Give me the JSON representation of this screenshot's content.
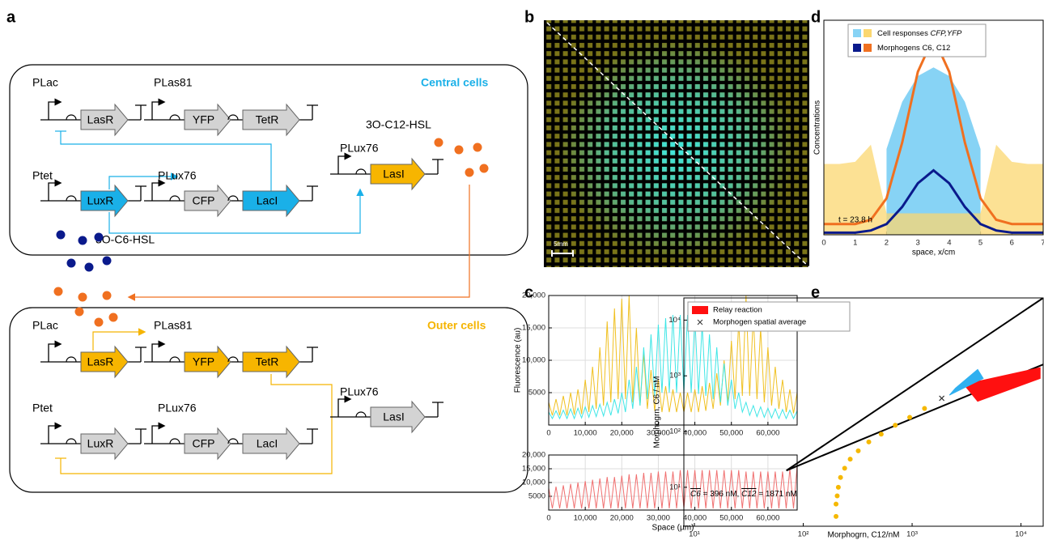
{
  "panel_labels": [
    "a",
    "b",
    "c",
    "d",
    "e"
  ],
  "diagram": {
    "central": {
      "title": "Central cells",
      "promoters": [
        "PLac",
        "PLas81",
        "Ptet",
        "PLux76",
        "PLux76"
      ],
      "genes": [
        "LasR",
        "YFP",
        "TetR",
        "LuxR",
        "CFP",
        "LacI",
        "LasI"
      ]
    },
    "outer": {
      "title": "Outer cells",
      "promoters": [
        "PLac",
        "PLas81",
        "Ptet",
        "PLux76",
        "PLux76"
      ],
      "genes": [
        "LasR",
        "YFP",
        "TetR",
        "LuxR",
        "CFP",
        "LacI",
        "LasI"
      ]
    },
    "molecules": [
      "3O-C12-HSL",
      "3O-C6-HSL"
    ]
  },
  "image_b": {
    "scale_bar": "5mm"
  },
  "chart_data": [
    {
      "type": "line",
      "ylabel": "Fluorescence (au)",
      "grid": true,
      "x": [
        0,
        1000,
        2000,
        3000,
        4000,
        5000,
        6000,
        7000,
        8000,
        9000,
        10000,
        11000,
        12000,
        13000,
        14000,
        15000,
        16000,
        17000,
        18000,
        19000,
        20000,
        21000,
        22000,
        23000,
        24000,
        25000,
        26000,
        27000,
        28000,
        29000,
        30000,
        31000,
        32000,
        33000,
        34000,
        35000,
        36000,
        37000,
        38000,
        39000,
        40000,
        41000,
        42000,
        43000,
        44000,
        45000,
        46000,
        47000,
        48000,
        49000,
        50000,
        51000,
        52000,
        53000,
        54000,
        55000,
        56000,
        57000,
        58000,
        59000,
        60000,
        61000,
        62000,
        63000,
        64000,
        65000,
        66000,
        67000,
        68000
      ],
      "series": [
        {
          "color": "#f0c020",
          "values": [
            3500,
            1500,
            4000,
            1500,
            4500,
            1500,
            5000,
            1600,
            5500,
            1700,
            7000,
            2000,
            9000,
            2500,
            12000,
            3000,
            16000,
            3500,
            18000,
            4000,
            19500,
            4000,
            20000,
            3500,
            15000,
            3000,
            11000,
            2500,
            8500,
            2200,
            7000,
            2000,
            6000,
            2000,
            5500,
            2000,
            5000,
            2000,
            5000,
            2000,
            5500,
            2000,
            6000,
            2200,
            6500,
            2500,
            8000,
            3000,
            10000,
            3500,
            13000,
            4000,
            16000,
            4500,
            20000,
            4500,
            17000,
            4000,
            15000,
            3500,
            12000,
            3000,
            9000,
            2500,
            7000,
            2000,
            5500,
            1800,
            5000
          ]
        },
        {
          "color": "#3ee6e6",
          "values": [
            2000,
            1000,
            2200,
            1000,
            2300,
            1000,
            2500,
            1000,
            2600,
            1100,
            2800,
            1200,
            3000,
            1300,
            3200,
            1400,
            3500,
            1500,
            4000,
            1800,
            5000,
            2000,
            7000,
            2500,
            9000,
            3000,
            12000,
            4000,
            14000,
            4500,
            15500,
            5000,
            16500,
            5000,
            17000,
            5000,
            17000,
            5000,
            17000,
            5000,
            16500,
            4800,
            15500,
            4500,
            14000,
            4000,
            12000,
            3500,
            9500,
            3000,
            7000,
            2500,
            5000,
            2000,
            3500,
            1500,
            3000,
            1300,
            2800,
            1200,
            2600,
            1100,
            2500,
            1000,
            2400,
            1000,
            2300,
            1000,
            2200
          ]
        }
      ],
      "xlim": [
        0,
        68000
      ],
      "ylim": [
        0,
        20000
      ],
      "xticks": [
        0,
        {
          "value": 10000,
          "label": "10,000"
        },
        {
          "value": 20000,
          "label": "20,000"
        },
        {
          "value": 30000,
          "label": "30,000"
        },
        {
          "value": 40000,
          "label": "40,000"
        },
        {
          "value": 50000,
          "label": "50,000"
        },
        {
          "value": 60000,
          "label": "60,000"
        }
      ],
      "yticks": [
        5000,
        {
          "value": 10000,
          "label": "10,000"
        },
        {
          "value": 15000,
          "label": "15,000"
        },
        {
          "value": 20000,
          "label": "20,000"
        }
      ]
    },
    {
      "type": "line",
      "xlabel": "Space (µm)",
      "grid": true,
      "x": [
        0,
        1000,
        2000,
        3000,
        4000,
        5000,
        6000,
        7000,
        8000,
        9000,
        10000,
        11000,
        12000,
        13000,
        14000,
        15000,
        16000,
        17000,
        18000,
        19000,
        20000,
        21000,
        22000,
        23000,
        24000,
        25000,
        26000,
        27000,
        28000,
        29000,
        30000,
        31000,
        32000,
        33000,
        34000,
        35000,
        36000,
        37000,
        38000,
        39000,
        40000,
        41000,
        42000,
        43000,
        44000,
        45000,
        46000,
        47000,
        48000,
        49000,
        50000,
        51000,
        52000,
        53000,
        54000,
        55000,
        56000,
        57000,
        58000,
        59000,
        60000,
        61000,
        62000,
        63000,
        64000,
        65000,
        66000,
        67000,
        68000
      ],
      "series": [
        {
          "color": "#f07070",
          "values": [
            8000,
            600,
            8500,
            600,
            9000,
            600,
            9500,
            600,
            10000,
            600,
            10500,
            600,
            11000,
            600,
            11500,
            600,
            12000,
            600,
            12000,
            600,
            12500,
            600,
            13000,
            600,
            13000,
            600,
            13500,
            600,
            13500,
            600,
            14000,
            600,
            14000,
            600,
            14000,
            600,
            14500,
            600,
            14500,
            600,
            14500,
            600,
            14500,
            600,
            14500,
            600,
            14500,
            600,
            14500,
            600,
            14500,
            600,
            14500,
            600,
            14000,
            600,
            14000,
            600,
            14000,
            600,
            14000,
            600,
            14000,
            600,
            14000,
            600,
            15000,
            600,
            16000
          ]
        }
      ],
      "xlim": [
        0,
        68000
      ],
      "ylim": [
        0,
        20000
      ],
      "xticks": [
        0,
        {
          "value": 10000,
          "label": "10,000"
        },
        {
          "value": 20000,
          "label": "20,000"
        },
        {
          "value": 30000,
          "label": "30,000"
        },
        {
          "value": 40000,
          "label": "40,000"
        },
        {
          "value": 50000,
          "label": "50,000"
        },
        {
          "value": 60000,
          "label": "60,000"
        }
      ],
      "yticks": [
        5000,
        {
          "value": 10000,
          "label": "10,000"
        },
        {
          "value": 15000,
          "label": "15,000"
        },
        {
          "value": 20000,
          "label": "20,000"
        }
      ]
    },
    {
      "type": "line",
      "xlabel": "space, x/cm",
      "ylabel": "Concentrations",
      "annotation": "t = 23.8 h",
      "legend": [
        {
          "label": [
            "Cell responses ",
            "CFP,YFP"
          ],
          "colors": [
            "#87d3f5",
            "#fbd770"
          ]
        },
        {
          "label": [
            "Morphogens C6, C12"
          ],
          "colors": [
            "#0a1a8c",
            "#f07020"
          ]
        }
      ],
      "x": [
        0,
        0.5,
        1,
        1.5,
        2,
        2.5,
        3,
        3.5,
        4,
        4.5,
        5,
        5.5,
        6,
        6.5,
        7
      ],
      "series": [
        {
          "kind": "area",
          "color": "#87d3f5",
          "values": [
            null,
            null,
            null,
            null,
            0.4,
            0.62,
            0.74,
            0.78,
            0.74,
            0.62,
            0.4,
            null,
            null,
            null,
            null
          ]
        },
        {
          "kind": "area",
          "color": "#fbd770",
          "values": [
            0.33,
            0.33,
            0.34,
            0.42,
            0.1,
            0.1,
            0.1,
            0.1,
            0.1,
            0.1,
            0.1,
            0.42,
            0.34,
            0.33,
            0.33
          ]
        },
        {
          "kind": "line",
          "color": "#f07020",
          "values": [
            0.05,
            0.05,
            0.05,
            0.07,
            0.17,
            0.43,
            0.76,
            0.92,
            0.76,
            0.43,
            0.17,
            0.07,
            0.05,
            0.05,
            0.05
          ]
        },
        {
          "kind": "line",
          "color": "#0a1a8c",
          "values": [
            0.01,
            0.01,
            0.01,
            0.02,
            0.05,
            0.13,
            0.24,
            0.3,
            0.24,
            0.13,
            0.05,
            0.02,
            0.01,
            0.01,
            0.01
          ]
        }
      ],
      "xlim": [
        0,
        7
      ],
      "ylim": [
        0,
        1
      ],
      "xticks": [
        0,
        1,
        2,
        3,
        4,
        5,
        6,
        7
      ]
    },
    {
      "type": "scatter",
      "xlog": true,
      "ylog": true,
      "xlabel": "Morphogrn, C12/nM",
      "ylabel": "Morphogrn, C6 / nM",
      "annotation": [
        "C6",
        " = 396 nM, ",
        "C12",
        " = 1871 nM"
      ],
      "series": [
        {
          "kind": "line",
          "color": "#000000",
          "x": [
            70,
            16000
          ],
          "y": [
            20,
            25000
          ]
        },
        {
          "kind": "line",
          "color": "#000000",
          "x": [
            70,
            16000
          ],
          "y": [
            20,
            1600
          ]
        },
        {
          "kind": "polygon",
          "name": "Relay reaction",
          "color": "#ff1010",
          "x": [
            3000,
            15000,
            15000,
            4000
          ],
          "y": [
            700,
            1400,
            900,
            350
          ]
        },
        {
          "kind": "polygon",
          "color": "#30b0f0",
          "x": [
            2500,
            4000,
            4500,
            2200
          ],
          "y": [
            600,
            1300,
            900,
            450
          ]
        },
        {
          "kind": "dots",
          "color": "#f5b800",
          "x": [
            200,
            200,
            205,
            210,
            220,
            240,
            270,
            320,
            400,
            520,
            700,
            950,
            1300
          ],
          "y": [
            3,
            5,
            7,
            10,
            15,
            22,
            32,
            45,
            65,
            90,
            130,
            180,
            260
          ]
        },
        {
          "kind": "cross",
          "name": "Morphogen spatial average",
          "color": "#333333",
          "x": [
            1871
          ],
          "y": [
            396
          ]
        }
      ],
      "xlim": [
        8,
        16000
      ],
      "ylim": [
        2,
        25000
      ],
      "xticks": [
        {
          "value": 10,
          "label": "10¹"
        },
        {
          "value": 100,
          "label": "10²"
        },
        {
          "value": 1000,
          "label": "10³"
        },
        {
          "value": 10000,
          "label": "10⁴"
        }
      ],
      "yticks": [
        {
          "value": 10,
          "label": "10¹"
        },
        {
          "value": 100,
          "label": "10²"
        },
        {
          "value": 1000,
          "label": "10³"
        },
        {
          "value": 10000,
          "label": "10⁴"
        }
      ]
    }
  ]
}
